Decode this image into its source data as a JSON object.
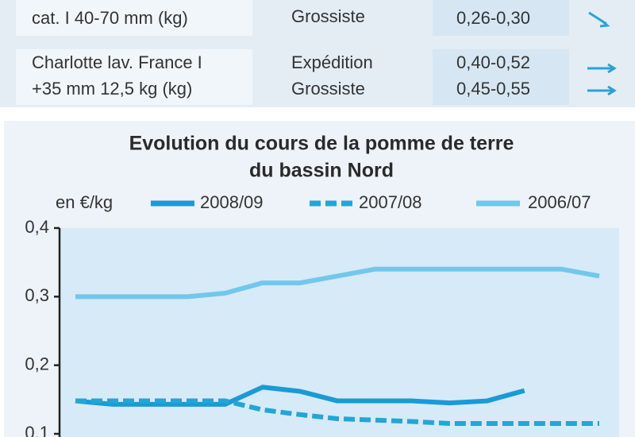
{
  "table": {
    "rows": [
      {
        "product": [
          "cat. I 40-70 mm (kg)"
        ],
        "stages": [
          "Grossiste"
        ],
        "prices": [
          "0,26-0,30"
        ]
      },
      {
        "product": [
          "Charlotte lav. France I",
          "+35 mm 12,5 kg (kg)"
        ],
        "stages": [
          "Expédition",
          "Grossiste"
        ],
        "prices": [
          "0,40-0,52",
          "0,45-0,55"
        ]
      }
    ]
  },
  "chart_data": {
    "type": "line",
    "title": [
      "Evolution du cours de la pomme de terre",
      "du bassin Nord"
    ],
    "ylabel": "en €/kg",
    "categories": [
      null,
      null,
      null,
      null,
      null,
      null,
      null,
      null,
      null,
      null,
      null,
      null,
      null,
      null,
      null
    ],
    "series": [
      {
        "name": "2008/09",
        "color": "#1a9ad6",
        "dash": false,
        "values": [
          0.148,
          0.143,
          0.143,
          0.143,
          0.143,
          0.168,
          0.162,
          0.148,
          0.148,
          0.148,
          0.145,
          0.148,
          0.163,
          null,
          null
        ]
      },
      {
        "name": "2007/08",
        "color": "#22a6d6",
        "dash": true,
        "values": [
          0.148,
          0.148,
          0.148,
          0.148,
          0.148,
          0.135,
          0.128,
          0.122,
          0.12,
          0.118,
          0.115,
          0.115,
          0.115,
          0.115,
          0.115
        ]
      },
      {
        "name": "2006/07",
        "color": "#72c7ec",
        "dash": false,
        "values": [
          0.3,
          0.3,
          0.3,
          0.3,
          0.305,
          0.32,
          0.32,
          0.33,
          0.34,
          0.34,
          0.34,
          0.34,
          0.34,
          0.34,
          0.33
        ]
      }
    ],
    "ylim": [
      0.1,
      0.4
    ],
    "yticks": [
      {
        "value": 0.4,
        "label": "0,4"
      },
      {
        "value": 0.3,
        "label": "0,3"
      },
      {
        "value": 0.2,
        "label": "0,2"
      },
      {
        "value": 0.1,
        "label": "0,1"
      }
    ]
  }
}
